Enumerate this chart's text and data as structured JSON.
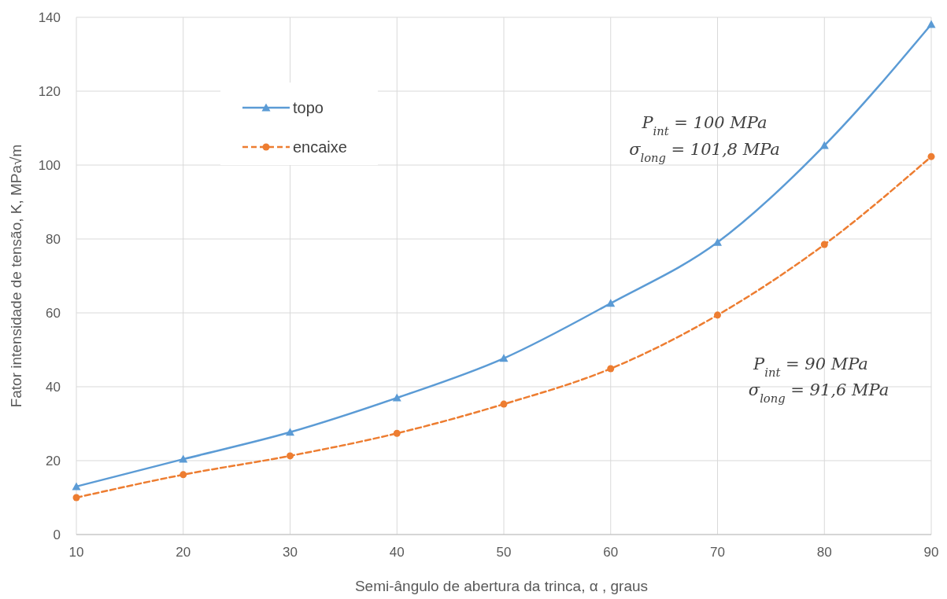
{
  "chart_data": {
    "type": "line",
    "xlabel": "Semi-ângulo de abertura da trinca, α , graus",
    "ylabel": "Fator intensidade de tensão, K, MPa√m",
    "x": [
      10,
      20,
      30,
      40,
      50,
      60,
      70,
      80,
      90
    ],
    "series": [
      {
        "name": "topo",
        "color": "#5b9bd5",
        "values": [
          13.0,
          20.4,
          27.7,
          37.0,
          47.7,
          62.6,
          79.1,
          105.3,
          138.1
        ],
        "marker": "triangle",
        "line_style": "solid"
      },
      {
        "name": "encaixe",
        "color": "#ed7d31",
        "values": [
          10.0,
          16.2,
          21.3,
          27.4,
          35.3,
          44.9,
          59.4,
          78.5,
          102.3
        ],
        "marker": "circle",
        "line_style": "dashed"
      }
    ],
    "xlim": [
      10,
      90
    ],
    "xticks": [
      10,
      20,
      30,
      40,
      50,
      60,
      70,
      80,
      90
    ],
    "ylim": [
      0,
      140
    ],
    "yticks": [
      0,
      20,
      40,
      60,
      80,
      100,
      120,
      140
    ],
    "grid": true,
    "legend": "top left",
    "annotations": [
      "P$_{int}$ = 100 MPa",
      "σ$_{long}$ = 101,8 MPa",
      "P$_{int}$ = 90 MPa",
      "σ$_{long}$ = 91,6 MPa"
    ]
  }
}
